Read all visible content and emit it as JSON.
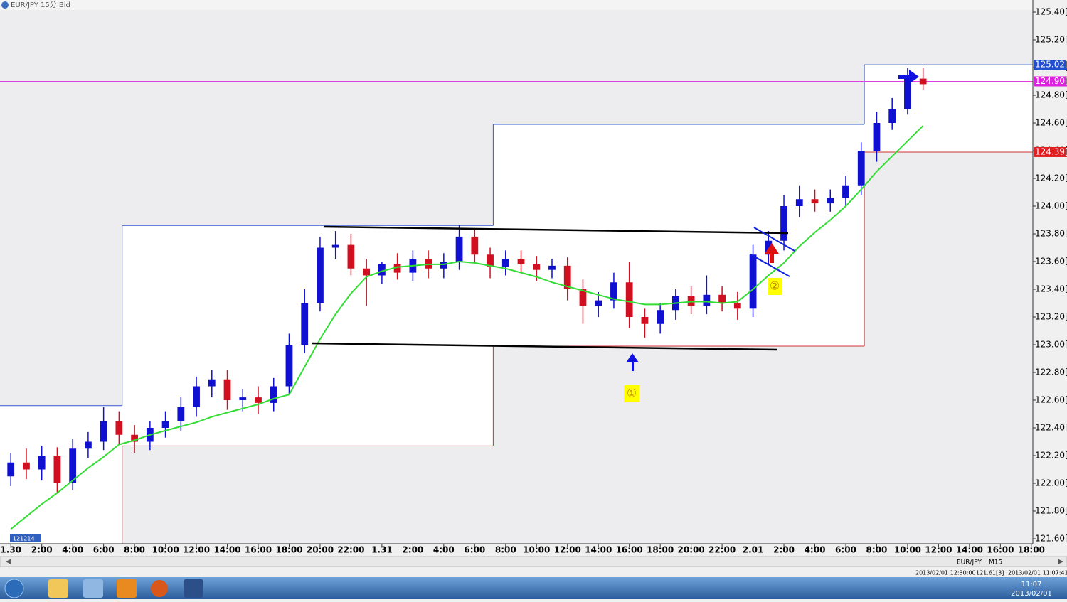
{
  "window": {
    "title": "EUR/JPY 15分 Bid"
  },
  "chart_data": {
    "type": "candlestick",
    "x": [
      0,
      1,
      2,
      3,
      4,
      5,
      6,
      7,
      8,
      9,
      10,
      11,
      12,
      13,
      14,
      15,
      16,
      17,
      18,
      19,
      20,
      21,
      22,
      23,
      24,
      25,
      26,
      27,
      28,
      29,
      30,
      31,
      32,
      33,
      34,
      35,
      36,
      37,
      38,
      39,
      40,
      41,
      42,
      43,
      44,
      45,
      46,
      47,
      48,
      49,
      50,
      51,
      52,
      53,
      54,
      55,
      56,
      57,
      58,
      59
    ],
    "open": [
      122.05,
      122.15,
      122.1,
      122.2,
      122.0,
      122.25,
      122.3,
      122.45,
      122.35,
      122.3,
      122.4,
      122.45,
      122.55,
      122.7,
      122.75,
      122.6,
      122.62,
      122.58,
      122.7,
      123.0,
      123.3,
      123.7,
      123.72,
      123.55,
      123.5,
      123.58,
      123.52,
      123.62,
      123.55,
      123.6,
      123.78,
      123.65,
      123.56,
      123.62,
      123.58,
      123.54,
      123.57,
      123.4,
      123.28,
      123.32,
      123.45,
      123.2,
      123.15,
      123.25,
      123.35,
      123.28,
      123.36,
      123.3,
      123.26,
      123.65,
      123.75,
      124.0,
      124.05,
      124.02,
      124.06,
      124.15,
      124.4,
      124.6,
      124.7,
      124.92
    ],
    "high": [
      122.22,
      122.25,
      122.27,
      122.26,
      122.32,
      122.37,
      122.55,
      122.52,
      122.42,
      122.45,
      122.52,
      122.62,
      122.77,
      122.82,
      122.82,
      122.68,
      122.7,
      122.76,
      123.08,
      123.4,
      123.78,
      123.82,
      123.8,
      123.62,
      123.6,
      123.66,
      123.68,
      123.68,
      123.66,
      123.86,
      123.84,
      123.7,
      123.68,
      123.68,
      123.64,
      123.62,
      123.63,
      123.47,
      123.38,
      123.52,
      123.6,
      123.26,
      123.3,
      123.4,
      123.42,
      123.5,
      123.42,
      123.38,
      123.72,
      123.82,
      124.08,
      124.15,
      124.12,
      124.12,
      124.22,
      124.46,
      124.68,
      124.78,
      125.0,
      125.0
    ],
    "low": [
      121.98,
      122.03,
      122.02,
      121.93,
      121.95,
      122.18,
      122.24,
      122.28,
      122.22,
      122.24,
      122.33,
      122.38,
      122.48,
      122.62,
      122.53,
      122.52,
      122.5,
      122.52,
      122.64,
      122.94,
      123.24,
      123.62,
      123.5,
      123.28,
      123.44,
      123.47,
      123.46,
      123.48,
      123.48,
      123.54,
      123.6,
      123.48,
      123.5,
      123.52,
      123.46,
      123.48,
      123.32,
      123.15,
      123.2,
      123.26,
      123.12,
      123.05,
      123.08,
      123.18,
      123.22,
      123.22,
      123.24,
      123.18,
      123.2,
      123.58,
      123.68,
      123.92,
      123.96,
      123.96,
      124.0,
      124.08,
      124.32,
      124.55,
      124.66,
      124.84
    ],
    "close": [
      122.15,
      122.1,
      122.2,
      122.0,
      122.25,
      122.3,
      122.45,
      122.35,
      122.3,
      122.4,
      122.45,
      122.55,
      122.7,
      122.75,
      122.6,
      122.62,
      122.58,
      122.7,
      123.0,
      123.3,
      123.7,
      123.72,
      123.55,
      123.5,
      123.58,
      123.52,
      123.62,
      123.55,
      123.6,
      123.78,
      123.65,
      123.56,
      123.62,
      123.58,
      123.54,
      123.57,
      123.4,
      123.28,
      123.32,
      123.45,
      123.2,
      123.15,
      123.25,
      123.35,
      123.28,
      123.36,
      123.3,
      123.26,
      123.65,
      123.75,
      124.0,
      124.05,
      124.02,
      124.06,
      124.15,
      124.4,
      124.6,
      124.7,
      124.92,
      124.88
    ],
    "up_color": "#1010d0",
    "down_color": "#d01020",
    "ma": {
      "color": "#33dd33",
      "values": [
        121.67,
        121.76,
        121.85,
        121.93,
        122.02,
        122.11,
        122.19,
        122.28,
        122.31,
        122.35,
        122.38,
        122.41,
        122.44,
        122.48,
        122.51,
        122.54,
        122.57,
        122.61,
        122.64,
        122.84,
        123.04,
        123.22,
        123.37,
        123.49,
        123.53,
        123.56,
        123.57,
        123.58,
        123.58,
        123.6,
        123.59,
        123.57,
        123.55,
        123.52,
        123.49,
        123.45,
        123.42,
        123.39,
        123.36,
        123.33,
        123.31,
        123.29,
        123.29,
        123.3,
        123.31,
        123.31,
        123.3,
        123.31,
        123.4,
        123.5,
        123.59,
        123.71,
        123.81,
        123.9,
        124.0,
        124.12,
        124.25,
        124.36,
        124.47,
        124.58
      ]
    },
    "ranges": [
      {
        "end": 7.2,
        "high": 122.56
      },
      {
        "start": 7.2,
        "end": 31.2,
        "high": 123.86,
        "low": 122.27
      },
      {
        "start": 31.2,
        "end": 55.2,
        "high": 124.59,
        "low": 122.99
      },
      {
        "start": 55.2,
        "high": 125.02,
        "low": 124.39
      }
    ],
    "bid_line": {
      "value": 124.9,
      "color": "#e040e0"
    },
    "price_labels": [
      {
        "value": 125.02,
        "label": "125.02[9",
        "color": "#2050d0"
      },
      {
        "value": 124.9,
        "label": "124.90[7",
        "color": "#e020e0"
      },
      {
        "value": 124.39,
        "label": "124.39[1",
        "color": "#e02020"
      }
    ],
    "xlim": [
      -0.7,
      66.1
    ],
    "ylim": [
      121.6,
      125.4
    ],
    "xticks": [
      {
        "value": 0,
        "label": "1.30"
      },
      {
        "value": 2,
        "label": "2:00"
      },
      {
        "value": 4,
        "label": "4:00"
      },
      {
        "value": 6,
        "label": "6:00"
      },
      {
        "value": 8,
        "label": "8:00"
      },
      {
        "value": 10,
        "label": "10:00"
      },
      {
        "value": 12,
        "label": "12:00"
      },
      {
        "value": 14,
        "label": "14:00"
      },
      {
        "value": 16,
        "label": "16:00"
      },
      {
        "value": 18,
        "label": "18:00"
      },
      {
        "value": 20,
        "label": "20:00"
      },
      {
        "value": 22,
        "label": "22:00"
      },
      {
        "value": 24,
        "label": "1.31"
      },
      {
        "value": 26,
        "label": "2:00"
      },
      {
        "value": 28,
        "label": "4:00"
      },
      {
        "value": 30,
        "label": "6:00"
      },
      {
        "value": 32,
        "label": "8:00"
      },
      {
        "value": 34,
        "label": "10:00"
      },
      {
        "value": 36,
        "label": "12:00"
      },
      {
        "value": 38,
        "label": "14:00"
      },
      {
        "value": 40,
        "label": "16:00"
      },
      {
        "value": 42,
        "label": "18:00"
      },
      {
        "value": 44,
        "label": "20:00"
      },
      {
        "value": 46,
        "label": "22:00"
      },
      {
        "value": 48,
        "label": "2.01"
      },
      {
        "value": 50,
        "label": "2:00"
      },
      {
        "value": 52,
        "label": "4:00"
      },
      {
        "value": 54,
        "label": "6:00"
      },
      {
        "value": 56,
        "label": "8:00"
      },
      {
        "value": 58,
        "label": "10:00"
      },
      {
        "value": 60,
        "label": "12:00"
      },
      {
        "value": 62,
        "label": "14:00"
      },
      {
        "value": 64,
        "label": "16:00"
      },
      {
        "value": 66,
        "label": "18:00"
      }
    ],
    "yticks": [
      {
        "value": 121.6,
        "label": "121.60[0"
      },
      {
        "value": 121.8,
        "label": "121.80[0"
      },
      {
        "value": 122.0,
        "label": "122.00[0"
      },
      {
        "value": 122.2,
        "label": "122.20[0"
      },
      {
        "value": 122.4,
        "label": "122.40[0"
      },
      {
        "value": 122.6,
        "label": "122.60[0"
      },
      {
        "value": 122.8,
        "label": "122.80[0"
      },
      {
        "value": 123.0,
        "label": "123.00[0"
      },
      {
        "value": 123.2,
        "label": "123.20[0"
      },
      {
        "value": 123.4,
        "label": "123.40[0"
      },
      {
        "value": 123.6,
        "label": "123.60[0"
      },
      {
        "value": 123.8,
        "label": "123.80[0"
      },
      {
        "value": 124.0,
        "label": "124.00[0"
      },
      {
        "value": 124.2,
        "label": "124.20[0"
      },
      {
        "value": 124.4,
        "label": "124.40[0"
      },
      {
        "value": 124.6,
        "label": "124.60[0"
      },
      {
        "value": 124.8,
        "label": "124.80[0"
      },
      {
        "value": 125.0,
        "label": "125.00[0"
      },
      {
        "value": 125.2,
        "label": "125.20[0"
      },
      {
        "value": 125.4,
        "label": "125.40[0"
      }
    ],
    "annotations": [
      "①",
      "②"
    ],
    "corner_label": "121214"
  },
  "toolbar": {
    "symbol": "EUR/JPY",
    "period": "M15"
  },
  "status": {
    "time": "2013/02/01 12:30:00",
    "price": "121.61[3]",
    "server_time": "2013/02/01 11:07:41"
  },
  "taskbar": {
    "clock": "11:07",
    "date": "2013/02/01"
  }
}
